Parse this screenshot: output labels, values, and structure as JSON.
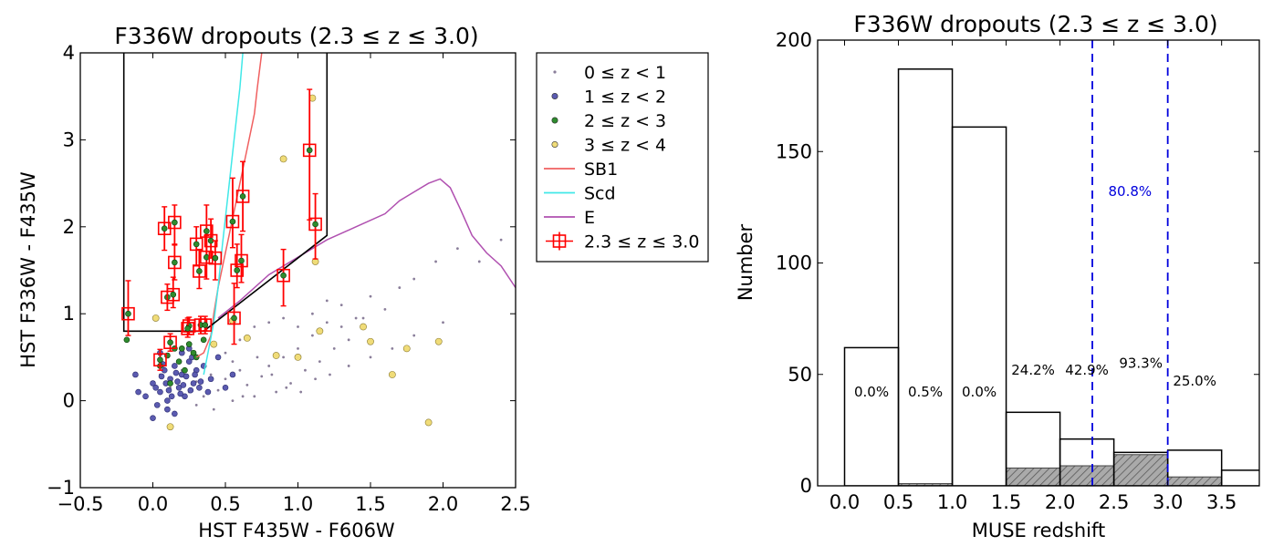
{
  "chart_data": [
    {
      "type": "scatter",
      "title": "F336W dropouts (2.3 ≤ z ≤ 3.0)",
      "xlabel": "HST F435W - F606W",
      "ylabel": "HST F336W - F435W",
      "xlim": [
        -0.5,
        2.5
      ],
      "ylim": [
        -1,
        4
      ],
      "xticks": [
        "−0.5",
        "0.0",
        "0.5",
        "1.0",
        "1.5",
        "2.0",
        "2.5"
      ],
      "yticks": [
        "−1",
        "0",
        "1",
        "2",
        "3",
        "4"
      ],
      "legend_position": "outside-right",
      "legend": [
        {
          "label": "0 ≤ z < 1",
          "marker": "dot",
          "color": "#8a7e9a"
        },
        {
          "label": "1 ≤ z < 2",
          "marker": "circle",
          "color": "#5b5bb0"
        },
        {
          "label": "2 ≤ z < 3",
          "marker": "circle",
          "color": "#2e8b2e"
        },
        {
          "label": "3 ≤ z < 4",
          "marker": "circle",
          "color": "#f0dc78"
        },
        {
          "label": "SB1",
          "marker": "line",
          "color": "#f06060"
        },
        {
          "label": "Scd",
          "marker": "line",
          "color": "#40e8e8"
        },
        {
          "label": "E",
          "marker": "line",
          "color": "#b050b0"
        },
        {
          "label": "2.3 ≤ z ≤ 3.0",
          "marker": "square-errorbar",
          "color": "#ff0000"
        }
      ],
      "selection_box": [
        [
          -0.2,
          4.0
        ],
        [
          -0.2,
          0.8
        ],
        [
          0.35,
          0.8
        ],
        [
          1.2,
          1.9
        ],
        [
          1.2,
          4.0
        ]
      ],
      "series": [
        {
          "name": "0 ≤ z < 1",
          "points": [
            [
              0.05,
              0.3
            ],
            [
              0.12,
              0.15
            ],
            [
              0.2,
              0.35
            ],
            [
              0.25,
              0.1
            ],
            [
              0.3,
              0.22
            ],
            [
              0.35,
              0.05
            ],
            [
              0.4,
              0.3
            ],
            [
              0.45,
              0.12
            ],
            [
              0.5,
              0.25
            ],
            [
              0.55,
              0.0
            ],
            [
              0.6,
              0.35
            ],
            [
              0.65,
              0.18
            ],
            [
              0.7,
              0.05
            ],
            [
              0.75,
              0.28
            ],
            [
              0.8,
              0.4
            ],
            [
              0.85,
              0.1
            ],
            [
              0.9,
              0.5
            ],
            [
              0.95,
              0.2
            ],
            [
              1.0,
              0.6
            ],
            [
              1.05,
              0.35
            ],
            [
              1.1,
              0.75
            ],
            [
              1.15,
              0.45
            ],
            [
              1.2,
              0.9
            ],
            [
              1.25,
              0.6
            ],
            [
              1.3,
              1.1
            ],
            [
              1.35,
              0.7
            ],
            [
              1.4,
              0.95
            ],
            [
              1.5,
              1.2
            ],
            [
              1.6,
              1.05
            ],
            [
              1.7,
              1.3
            ],
            [
              1.8,
              1.4
            ],
            [
              1.95,
              1.6
            ],
            [
              2.1,
              1.75
            ],
            [
              2.25,
              1.6
            ],
            [
              2.4,
              1.85
            ],
            [
              0.5,
              0.55
            ],
            [
              0.6,
              0.7
            ],
            [
              0.7,
              0.85
            ],
            [
              0.8,
              0.9
            ],
            [
              0.9,
              0.95
            ],
            [
              1.0,
              0.85
            ],
            [
              1.1,
              1.0
            ],
            [
              1.2,
              1.15
            ],
            [
              1.3,
              0.85
            ],
            [
              1.45,
              0.95
            ],
            [
              0.3,
              -0.05
            ],
            [
              0.42,
              -0.1
            ],
            [
              0.55,
              0.45
            ],
            [
              0.62,
              0.05
            ],
            [
              0.72,
              0.5
            ],
            [
              0.82,
              0.3
            ],
            [
              0.92,
              0.15
            ],
            [
              1.02,
              0.1
            ],
            [
              1.12,
              0.25
            ],
            [
              1.22,
              0.3
            ],
            [
              1.35,
              0.4
            ],
            [
              1.5,
              0.5
            ],
            [
              1.65,
              0.6
            ],
            [
              1.8,
              0.75
            ],
            [
              2.0,
              0.9
            ]
          ]
        },
        {
          "name": "1 ≤ z < 2",
          "points": [
            [
              -0.05,
              0.05
            ],
            [
              0.0,
              0.2
            ],
            [
              0.05,
              0.1
            ],
            [
              0.08,
              0.35
            ],
            [
              0.1,
              0.0
            ],
            [
              0.12,
              0.25
            ],
            [
              0.15,
              0.4
            ],
            [
              0.18,
              0.15
            ],
            [
              0.2,
              0.3
            ],
            [
              0.22,
              0.05
            ],
            [
              0.25,
              0.45
            ],
            [
              0.28,
              0.2
            ],
            [
              0.3,
              0.35
            ],
            [
              0.03,
              -0.05
            ],
            [
              0.13,
              0.05
            ],
            [
              0.17,
              0.22
            ],
            [
              0.07,
              0.42
            ],
            [
              0.23,
              0.28
            ],
            [
              0.27,
              0.5
            ],
            [
              0.32,
              0.15
            ],
            [
              0.35,
              0.4
            ],
            [
              0.1,
              -0.1
            ],
            [
              0.2,
              0.55
            ],
            [
              0.0,
              -0.2
            ],
            [
              0.15,
              -0.15
            ],
            [
              0.05,
              0.55
            ],
            [
              0.25,
              0.6
            ],
            [
              0.4,
              0.25
            ],
            [
              0.45,
              0.5
            ],
            [
              0.38,
              0.1
            ],
            [
              0.5,
              0.15
            ],
            [
              0.55,
              0.3
            ],
            [
              -0.1,
              0.1
            ],
            [
              -0.12,
              0.3
            ],
            [
              0.02,
              0.15
            ],
            [
              0.11,
              0.12
            ],
            [
              0.19,
              0.08
            ],
            [
              0.21,
              0.18
            ],
            [
              0.26,
              0.12
            ],
            [
              0.16,
              0.32
            ],
            [
              0.09,
              0.2
            ],
            [
              0.06,
              0.28
            ],
            [
              0.29,
              0.3
            ],
            [
              0.33,
              0.22
            ]
          ]
        },
        {
          "name": "2 ≤ z < 3",
          "points": [
            [
              -0.18,
              0.7
            ],
            [
              0.1,
              0.52
            ],
            [
              0.2,
              0.6
            ],
            [
              0.12,
              0.2
            ],
            [
              0.25,
              0.65
            ],
            [
              0.18,
              0.45
            ],
            [
              0.3,
              0.5
            ],
            [
              0.22,
              0.35
            ],
            [
              0.35,
              0.7
            ],
            [
              0.28,
              0.55
            ],
            [
              0.15,
              0.6
            ],
            [
              0.05,
              0.4
            ]
          ]
        },
        {
          "name": "3 ≤ z < 4",
          "points": [
            [
              1.1,
              3.48
            ],
            [
              0.9,
              2.78
            ],
            [
              1.12,
              1.6
            ],
            [
              0.55,
              0.92
            ],
            [
              0.65,
              0.72
            ],
            [
              0.85,
              0.52
            ],
            [
              1.0,
              0.5
            ],
            [
              1.15,
              0.8
            ],
            [
              1.45,
              0.85
            ],
            [
              1.5,
              0.68
            ],
            [
              1.65,
              0.3
            ],
            [
              1.75,
              0.6
            ],
            [
              1.9,
              -0.25
            ],
            [
              1.97,
              0.68
            ],
            [
              0.42,
              0.65
            ],
            [
              0.12,
              -0.3
            ],
            [
              0.02,
              0.95
            ]
          ]
        },
        {
          "name": "2.3 ≤ z ≤ 3.0",
          "points": [
            {
              "x": -0.17,
              "y": 1.0,
              "err": [
                0.25,
                0.38
              ]
            },
            {
              "x": 0.05,
              "y": 0.47,
              "err": [
                0.12,
                0.12
              ]
            },
            {
              "x": 0.08,
              "y": 1.98,
              "err": [
                0.25,
                0.25
              ]
            },
            {
              "x": 0.1,
              "y": 1.19,
              "err": [
                0.15,
                0.15
              ]
            },
            {
              "x": 0.12,
              "y": 0.67,
              "err": [
                0.1,
                0.1
              ]
            },
            {
              "x": 0.14,
              "y": 1.22,
              "err": [
                0.15,
                0.2
              ]
            },
            {
              "x": 0.15,
              "y": 2.05,
              "err": [
                0.25,
                0.2
              ]
            },
            {
              "x": 0.15,
              "y": 1.59,
              "err": [
                0.2,
                0.2
              ]
            },
            {
              "x": 0.25,
              "y": 0.86,
              "err": [
                0.1,
                0.1
              ]
            },
            {
              "x": 0.24,
              "y": 0.83,
              "err": [
                0.1,
                0.12
              ]
            },
            {
              "x": 0.3,
              "y": 1.8,
              "err": [
                0.25,
                0.2
              ]
            },
            {
              "x": 0.32,
              "y": 1.49,
              "err": [
                0.2,
                0.25
              ]
            },
            {
              "x": 0.33,
              "y": 0.87,
              "err": [
                0.1,
                0.1
              ]
            },
            {
              "x": 0.36,
              "y": 0.87,
              "err": [
                0.1,
                0.1
              ]
            },
            {
              "x": 0.37,
              "y": 1.95,
              "err": [
                0.3,
                0.3
              ]
            },
            {
              "x": 0.37,
              "y": 1.65,
              "err": [
                0.25,
                0.25
              ]
            },
            {
              "x": 0.4,
              "y": 1.84,
              "err": [
                0.2,
                0.25
              ]
            },
            {
              "x": 0.43,
              "y": 1.64,
              "err": [
                0.25,
                0.2
              ]
            },
            {
              "x": 0.56,
              "y": 0.95,
              "err": [
                0.3,
                0.4
              ]
            },
            {
              "x": 0.55,
              "y": 2.06,
              "err": [
                0.3,
                0.5
              ]
            },
            {
              "x": 0.58,
              "y": 1.5,
              "err": [
                0.2,
                0.3
              ]
            },
            {
              "x": 0.61,
              "y": 1.61,
              "err": [
                0.25,
                0.3
              ]
            },
            {
              "x": 0.62,
              "y": 2.35,
              "err": [
                0.4,
                0.4
              ]
            },
            {
              "x": 0.9,
              "y": 1.44,
              "err": [
                0.35,
                0.3
              ]
            },
            {
              "x": 1.08,
              "y": 2.88,
              "err": [
                0.8,
                0.7
              ]
            },
            {
              "x": 1.12,
              "y": 2.03,
              "err": [
                0.4,
                0.35
              ]
            }
          ]
        }
      ],
      "tracks": [
        {
          "name": "SB1",
          "points": [
            [
              0.3,
              0.5
            ],
            [
              0.35,
              0.55
            ],
            [
              0.4,
              0.75
            ],
            [
              0.42,
              1.0
            ],
            [
              0.45,
              1.3
            ],
            [
              0.5,
              1.7
            ],
            [
              0.55,
              2.1
            ],
            [
              0.6,
              2.5
            ],
            [
              0.65,
              2.9
            ],
            [
              0.7,
              3.3
            ],
            [
              0.72,
              3.6
            ],
            [
              0.75,
              4.0
            ]
          ]
        },
        {
          "name": "Scd",
          "points": [
            [
              0.35,
              0.3
            ],
            [
              0.38,
              0.55
            ],
            [
              0.42,
              0.9
            ],
            [
              0.45,
              1.3
            ],
            [
              0.48,
              1.8
            ],
            [
              0.52,
              2.4
            ],
            [
              0.56,
              3.0
            ],
            [
              0.6,
              3.6
            ],
            [
              0.62,
              4.0
            ]
          ]
        },
        {
          "name": "E",
          "points": [
            [
              0.45,
              0.95
            ],
            [
              0.6,
              1.15
            ],
            [
              0.8,
              1.45
            ],
            [
              1.0,
              1.65
            ],
            [
              1.2,
              1.85
            ],
            [
              1.4,
              2.0
            ],
            [
              1.6,
              2.15
            ],
            [
              1.7,
              2.3
            ],
            [
              1.8,
              2.4
            ],
            [
              1.9,
              2.5
            ],
            [
              1.98,
              2.55
            ],
            [
              2.05,
              2.45
            ],
            [
              2.12,
              2.2
            ],
            [
              2.2,
              1.9
            ],
            [
              2.3,
              1.7
            ],
            [
              2.4,
              1.55
            ],
            [
              2.5,
              1.3
            ]
          ]
        }
      ]
    },
    {
      "type": "bar",
      "title": "F336W dropouts (2.3 ≤ z ≤ 3.0)",
      "xlabel": "MUSE redshift",
      "ylabel": "Number",
      "xlim": [
        -0.25,
        3.85
      ],
      "ylim": [
        0,
        200
      ],
      "xticks": [
        "0.0",
        "0.5",
        "1.0",
        "1.5",
        "2.0",
        "2.5",
        "3.0",
        "3.5"
      ],
      "yticks": [
        "0",
        "50",
        "100",
        "150",
        "200"
      ],
      "bin_edges": [
        0.0,
        0.5,
        1.0,
        1.5,
        2.0,
        2.5,
        3.0,
        3.5,
        4.0
      ],
      "series": [
        {
          "values": [
            62,
            187,
            161,
            33,
            21,
            15,
            16,
            7
          ]
        },
        {
          "values": [
            0,
            1,
            0,
            8,
            9,
            14,
            4,
            0
          ]
        }
      ],
      "annotations": [
        "0.0%",
        "0.5%",
        "0.0%",
        "24.2%",
        "42.9%",
        "93.3%",
        "25.0%"
      ],
      "highlight_range": [
        2.3,
        3.0
      ],
      "highlight_label": "80.8%"
    }
  ]
}
